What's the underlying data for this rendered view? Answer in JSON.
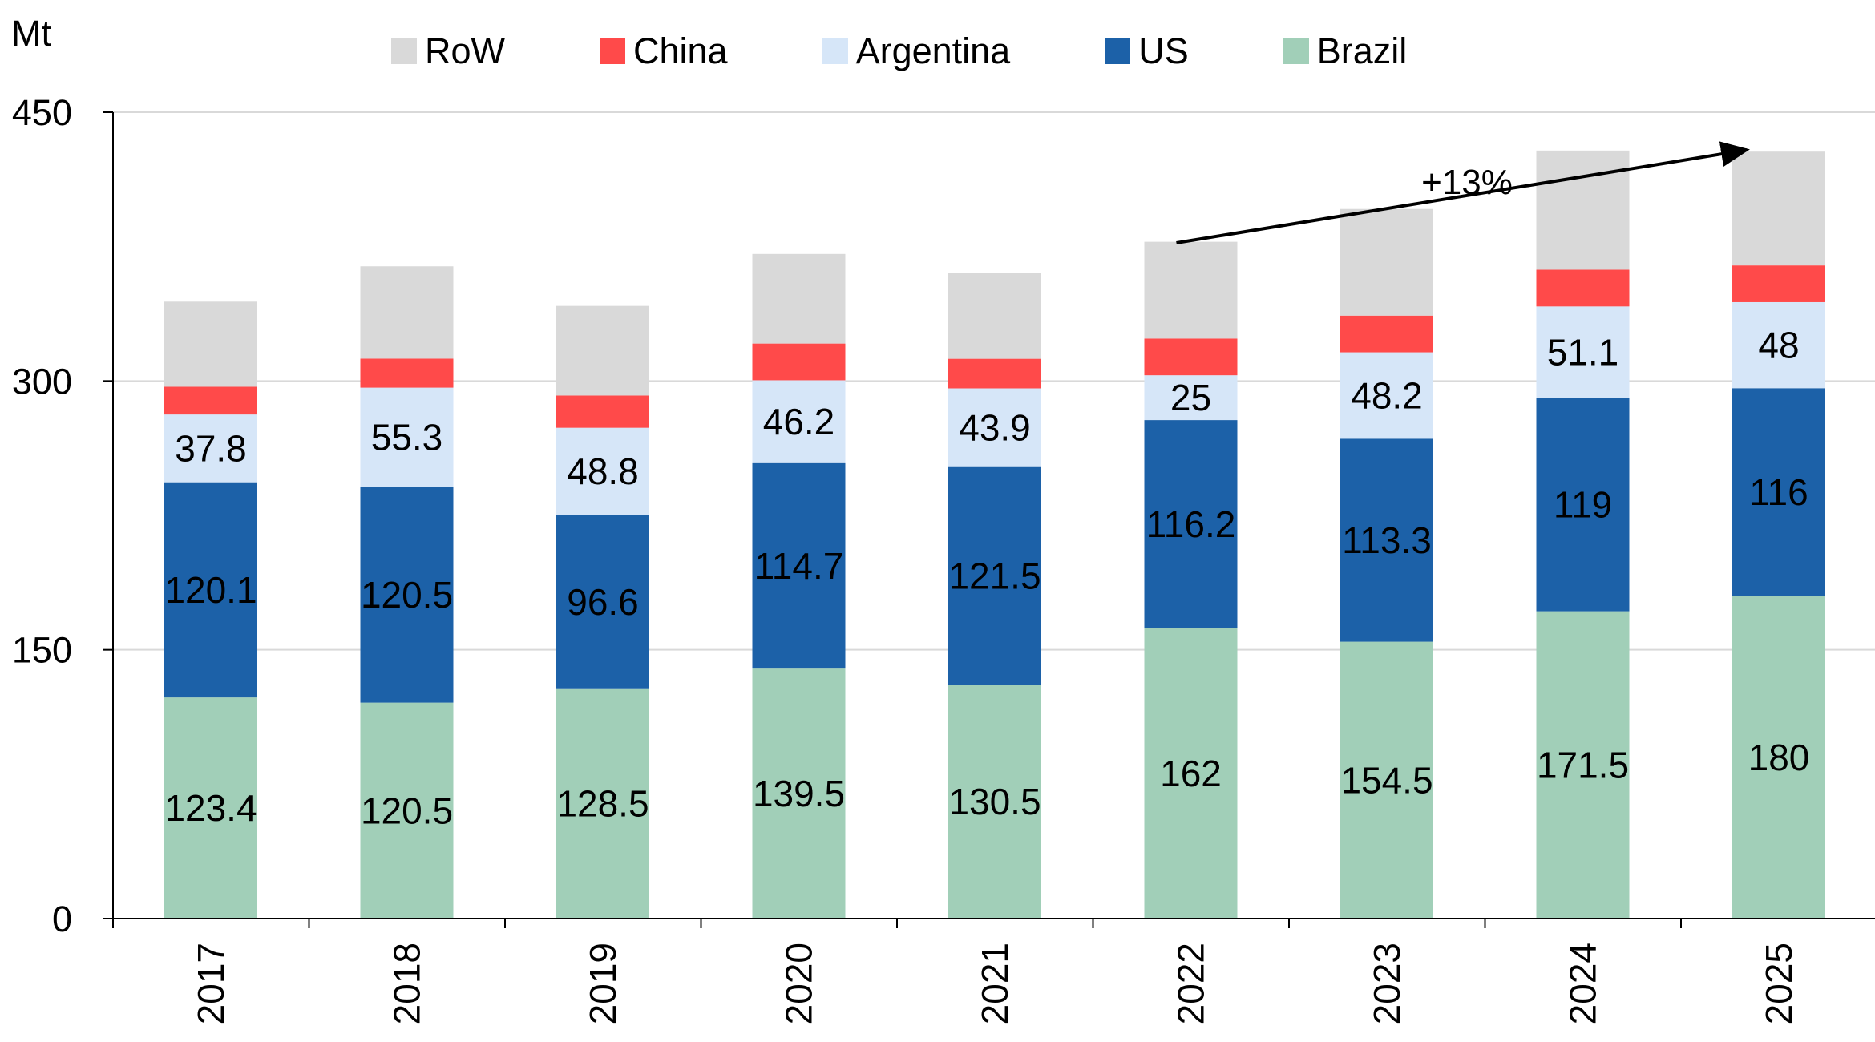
{
  "chart_data": {
    "type": "bar",
    "stacked": true,
    "unit_label": "Mt",
    "categories": [
      "2017",
      "2018",
      "2019",
      "2020",
      "2021",
      "2022",
      "2023",
      "2024",
      "2025"
    ],
    "series": [
      {
        "name": "Brazil",
        "color": "#a1cfb8",
        "values": [
          123.4,
          120.5,
          128.5,
          139.5,
          130.5,
          162,
          154.5,
          171.5,
          180
        ],
        "labels": [
          "123.4",
          "120.5",
          "128.5",
          "139.5",
          "130.5",
          "162",
          "154.5",
          "171.5",
          "180"
        ]
      },
      {
        "name": "US",
        "color": "#1c61a8",
        "values": [
          120.1,
          120.5,
          96.6,
          114.7,
          121.5,
          116.2,
          113.3,
          119,
          116
        ],
        "labels": [
          "120.1",
          "120.5",
          "96.6",
          "114.7",
          "121.5",
          "116.2",
          "113.3",
          "119",
          "116"
        ]
      },
      {
        "name": "Argentina",
        "color": "#d6e6f8",
        "values": [
          37.8,
          55.3,
          48.8,
          46.2,
          43.9,
          25,
          48.2,
          51.1,
          48
        ],
        "labels": [
          "37.8",
          "55.3",
          "48.8",
          "46.2",
          "43.9",
          "25",
          "48.2",
          "51.1",
          "48"
        ]
      },
      {
        "name": "China",
        "color": "#ff4a4a",
        "values": [
          15.5,
          16.2,
          18,
          20.5,
          16.5,
          20.5,
          20.5,
          20.5,
          20.5
        ]
      },
      {
        "name": "RoW",
        "color": "#d9d9d9",
        "values": [
          47.5,
          51.5,
          50,
          50,
          48,
          54,
          59.5,
          66.5,
          63.5
        ]
      }
    ],
    "legend_order": [
      "RoW",
      "China",
      "Argentina",
      "US",
      "Brazil"
    ],
    "ylim": [
      0,
      450
    ],
    "yticks": [
      "0",
      "150",
      "300",
      "450"
    ],
    "annotation": {
      "text": "+13%",
      "from_category": "2022",
      "to_category": "2025"
    },
    "legend_position": "top"
  }
}
